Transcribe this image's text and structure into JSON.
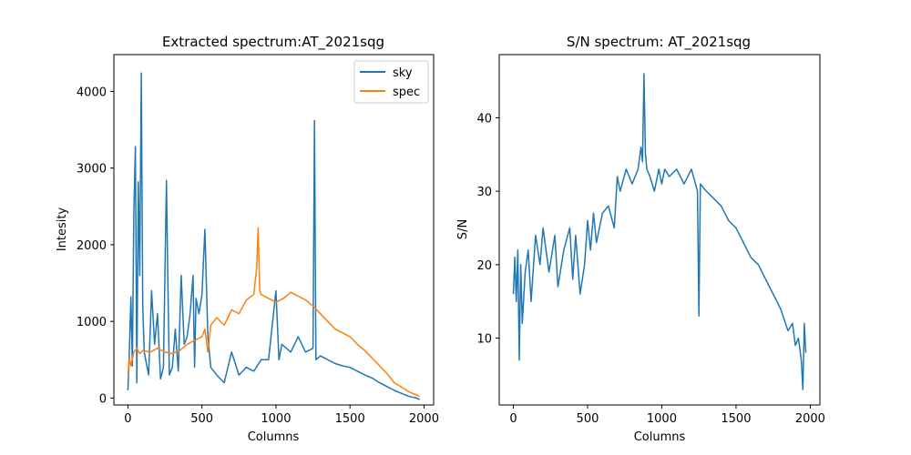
{
  "colors": {
    "sky": "#1f77b4",
    "spec": "#ff7f0e",
    "sn": "#1f77b4"
  },
  "chart_data": [
    {
      "type": "line",
      "title": "Extracted spectrum:AT_2021sqg",
      "xlabel": "Columns",
      "ylabel": "Intesity",
      "xlim": [
        -95,
        2065
      ],
      "ylim": [
        -90,
        4480
      ],
      "xticks": [
        0,
        500,
        1000,
        1500,
        2000
      ],
      "yticks": [
        0,
        1000,
        2000,
        3000,
        4000
      ],
      "grid": false,
      "legend": "top-right",
      "series": [
        {
          "name": "sky",
          "color": "#1f77b4",
          "x": [
            0,
            10,
            20,
            30,
            40,
            50,
            60,
            70,
            80,
            90,
            100,
            110,
            120,
            140,
            160,
            180,
            200,
            220,
            240,
            260,
            270,
            280,
            300,
            320,
            340,
            360,
            380,
            400,
            420,
            440,
            450,
            460,
            480,
            500,
            520,
            540,
            560,
            600,
            650,
            700,
            750,
            800,
            850,
            900,
            950,
            1000,
            1020,
            1040,
            1100,
            1150,
            1200,
            1250,
            1260,
            1270,
            1300,
            1350,
            1400,
            1450,
            1500,
            1550,
            1600,
            1650,
            1700,
            1750,
            1800,
            1850,
            1900,
            1950,
            1970
          ],
          "y": [
            100,
            650,
            1320,
            420,
            2400,
            3280,
            200,
            2820,
            1600,
            4240,
            1200,
            600,
            500,
            300,
            1400,
            700,
            1100,
            250,
            400,
            2840,
            1500,
            300,
            400,
            900,
            350,
            1600,
            700,
            800,
            1100,
            1600,
            400,
            1300,
            1100,
            1350,
            2200,
            800,
            400,
            300,
            200,
            600,
            300,
            400,
            350,
            500,
            500,
            1400,
            500,
            700,
            600,
            800,
            600,
            650,
            3620,
            500,
            550,
            500,
            450,
            420,
            400,
            350,
            300,
            260,
            200,
            150,
            100,
            60,
            20,
            0,
            -20
          ]
        },
        {
          "name": "spec",
          "color": "#ff7f0e",
          "x": [
            0,
            10,
            20,
            40,
            60,
            80,
            100,
            150,
            200,
            250,
            300,
            350,
            400,
            450,
            500,
            520,
            540,
            560,
            600,
            650,
            700,
            750,
            800,
            850,
            870,
            880,
            890,
            900,
            950,
            1000,
            1050,
            1100,
            1150,
            1200,
            1250,
            1300,
            1350,
            1400,
            1450,
            1500,
            1550,
            1600,
            1650,
            1700,
            1750,
            1800,
            1850,
            1900,
            1950,
            1970
          ],
          "y": [
            300,
            520,
            420,
            600,
            650,
            580,
            620,
            600,
            650,
            600,
            580,
            620,
            700,
            750,
            800,
            900,
            600,
            950,
            1050,
            950,
            1150,
            1100,
            1280,
            1350,
            1700,
            2220,
            1400,
            1350,
            1300,
            1250,
            1300,
            1380,
            1330,
            1280,
            1200,
            1100,
            1000,
            900,
            850,
            800,
            700,
            620,
            520,
            420,
            320,
            200,
            140,
            80,
            40,
            20
          ]
        }
      ]
    },
    {
      "type": "line",
      "title": "S/N spectrum: AT_2021sqg",
      "xlabel": "Columns",
      "ylabel": "S/N",
      "xlim": [
        -95,
        2065
      ],
      "ylim": [
        0.9,
        48.6
      ],
      "xticks": [
        0,
        500,
        1000,
        1500,
        2000
      ],
      "yticks": [
        10,
        20,
        30,
        40
      ],
      "grid": false,
      "series": [
        {
          "color": "#1f77b4",
          "x": [
            0,
            10,
            20,
            30,
            40,
            50,
            60,
            80,
            100,
            120,
            150,
            180,
            200,
            240,
            280,
            300,
            340,
            380,
            400,
            420,
            450,
            480,
            500,
            520,
            540,
            560,
            600,
            640,
            680,
            700,
            720,
            760,
            800,
            840,
            860,
            870,
            880,
            890,
            900,
            920,
            950,
            980,
            1000,
            1020,
            1050,
            1100,
            1150,
            1200,
            1240,
            1250,
            1260,
            1300,
            1350,
            1400,
            1450,
            1500,
            1550,
            1600,
            1650,
            1700,
            1750,
            1800,
            1850,
            1880,
            1900,
            1920,
            1940,
            1950,
            1960,
            1970
          ],
          "y": [
            16,
            21,
            15,
            22,
            7,
            20,
            12,
            19,
            22,
            15,
            24,
            20,
            25,
            19,
            24,
            17,
            22,
            25,
            18,
            24,
            16,
            20,
            26,
            22,
            27,
            23,
            27,
            28,
            25,
            32,
            30,
            33,
            31,
            33,
            36,
            34,
            46,
            35,
            33,
            32,
            30,
            33,
            31,
            33,
            32,
            33,
            31,
            33,
            30,
            13,
            31,
            30,
            29,
            28,
            26,
            25,
            23,
            21,
            20,
            18,
            16,
            14,
            11,
            12,
            9,
            10,
            7,
            3,
            12,
            8
          ]
        }
      ]
    }
  ]
}
